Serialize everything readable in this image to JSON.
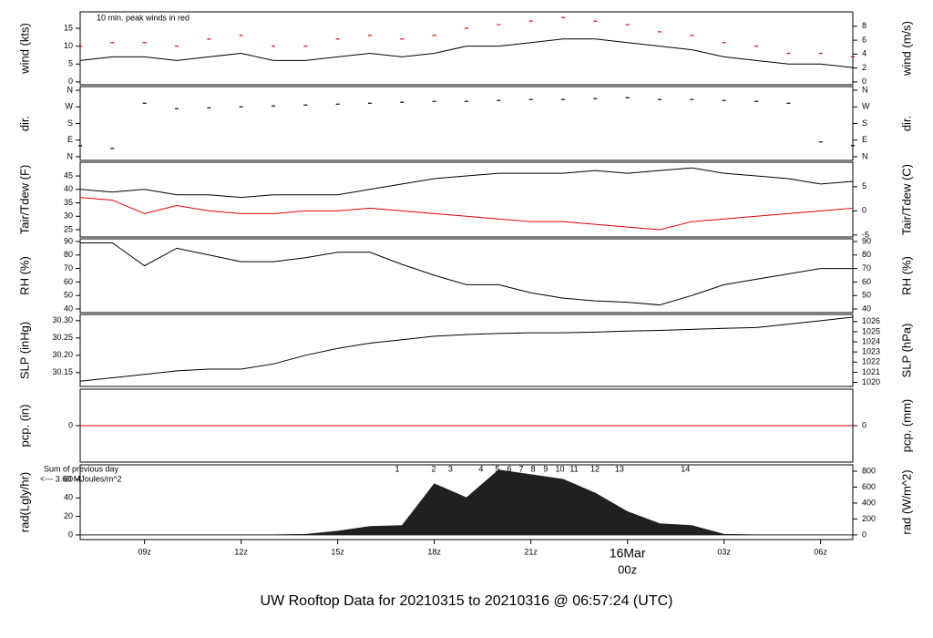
{
  "title": "UW Rooftop Data for 20210315  to  20210316 @ 06:57:24  (UTC)",
  "title_color": "#1010e0",
  "chart_data": [
    {
      "type": "line",
      "ylabel": "wind (kts)",
      "y2label": "wind (m/s)",
      "note": "10 min. peak winds in red",
      "note_color": "#e00000",
      "x": [
        7,
        8,
        9,
        10,
        11,
        12,
        13,
        14,
        15,
        16,
        17,
        18,
        19,
        20,
        21,
        22,
        23,
        24,
        25,
        26,
        27,
        28,
        29,
        30,
        31
      ],
      "xlim": [
        7,
        31
      ],
      "ylim": [
        -0.8,
        19.6
      ],
      "yticks": [
        0,
        5,
        10,
        15
      ],
      "y2lim": [
        -0.41,
        10.08
      ],
      "y2ticks": [
        0,
        2,
        4,
        6,
        8
      ],
      "series": [
        {
          "color": "#000000",
          "mode": "line",
          "values": [
            6,
            7,
            7,
            6,
            7,
            8,
            6,
            6,
            7,
            8,
            7,
            8,
            10,
            10,
            11,
            12,
            12,
            11,
            10,
            9,
            7,
            6,
            5,
            5,
            4
          ]
        },
        {
          "color": "#e00000",
          "mode": "dash",
          "values": [
            10,
            11,
            11,
            10,
            12,
            13,
            10,
            10,
            12,
            13,
            12,
            13,
            15,
            16,
            17,
            18,
            17,
            16,
            14,
            13,
            11,
            10,
            8,
            8,
            7
          ]
        }
      ]
    },
    {
      "type": "line",
      "ylabel": "dir.",
      "y2label": "dir.",
      "x": [
        7,
        8,
        9,
        10,
        11,
        12,
        13,
        14,
        15,
        16,
        17,
        18,
        19,
        20,
        21,
        22,
        23,
        24,
        25,
        26,
        27,
        28,
        29,
        30,
        31
      ],
      "xlim": [
        7,
        31
      ],
      "ylim": [
        -20,
        380
      ],
      "yticks": [
        {
          "value": 0,
          "label": "N"
        },
        {
          "value": 90,
          "label": "E"
        },
        {
          "value": 180,
          "label": "S"
        },
        {
          "value": 270,
          "label": "W"
        },
        {
          "value": 360,
          "label": "N"
        }
      ],
      "y2lim": [
        -20,
        380
      ],
      "y2ticks": [
        {
          "value": 0,
          "label": "N"
        },
        {
          "value": 90,
          "label": "E"
        },
        {
          "value": 180,
          "label": "S"
        },
        {
          "value": 270,
          "label": "W"
        },
        {
          "value": 360,
          "label": "N"
        }
      ],
      "series": [
        {
          "color": "#000000",
          "mode": "dash",
          "values": [
            60,
            45,
            290,
            260,
            265,
            270,
            275,
            280,
            285,
            290,
            295,
            300,
            300,
            305,
            310,
            310,
            315,
            320,
            310,
            310,
            305,
            300,
            290,
            80,
            60
          ]
        }
      ]
    },
    {
      "type": "line",
      "ylabel": "Tair/Tdew (F)",
      "y2label": "Tair/Tdew (C)",
      "x": [
        7,
        8,
        9,
        10,
        11,
        12,
        13,
        14,
        15,
        16,
        17,
        18,
        19,
        20,
        21,
        22,
        23,
        24,
        25,
        26,
        27,
        28,
        29,
        30,
        31
      ],
      "xlim": [
        7,
        31
      ],
      "ylim": [
        22.3,
        50.1
      ],
      "yticks": [
        25,
        30,
        35,
        40,
        45
      ],
      "y2lim": [
        -5.4,
        10.06
      ],
      "y2ticks": [
        -5,
        0,
        5
      ],
      "series": [
        {
          "color": "#000000",
          "mode": "line",
          "values": [
            40,
            39,
            40,
            38,
            38,
            37,
            38,
            38,
            38,
            40,
            42,
            44,
            45,
            46,
            46,
            46,
            47,
            46,
            47,
            48,
            46,
            45,
            44,
            42,
            43
          ]
        },
        {
          "color": "#e00000",
          "mode": "line",
          "values": [
            37,
            36,
            31,
            34,
            32,
            31,
            31,
            32,
            32,
            33,
            32,
            31,
            30,
            29,
            28,
            28,
            27,
            26,
            25,
            28,
            29,
            30,
            31,
            32,
            33
          ]
        }
      ]
    },
    {
      "type": "line",
      "ylabel": "RH (%)",
      "y2label": "RH (%)",
      "x": [
        7,
        8,
        9,
        10,
        11,
        12,
        13,
        14,
        15,
        16,
        17,
        18,
        19,
        20,
        21,
        22,
        23,
        24,
        25,
        26,
        27,
        28,
        29,
        30,
        31
      ],
      "xlim": [
        7,
        31
      ],
      "ylim": [
        37.3,
        92
      ],
      "yticks": [
        40,
        50,
        60,
        70,
        80,
        90
      ],
      "y2lim": [
        37.3,
        92
      ],
      "y2ticks": [
        40,
        50,
        60,
        70,
        80,
        90
      ],
      "series": [
        {
          "color": "#000000",
          "mode": "line",
          "values": [
            89,
            89,
            72,
            85,
            80,
            75,
            75,
            78,
            82,
            82,
            73,
            65,
            58,
            58,
            52,
            48,
            46,
            45,
            43,
            50,
            58,
            62,
            66,
            70,
            70
          ]
        }
      ]
    },
    {
      "type": "line",
      "ylabel": "SLP (inHg)",
      "y2label": "SLP (hPa)",
      "x": [
        7,
        8,
        9,
        10,
        11,
        12,
        13,
        14,
        15,
        16,
        17,
        18,
        19,
        20,
        21,
        22,
        23,
        24,
        25,
        26,
        27,
        28,
        29,
        30,
        31
      ],
      "xlim": [
        7,
        31
      ],
      "ylim": [
        30.11,
        30.318
      ],
      "yticks": [
        {
          "value": 30.15,
          "label": "30.15"
        },
        {
          "value": 30.2,
          "label": "30.20"
        },
        30.25,
        {
          "value": 30.3,
          "label": "30.30"
        }
      ],
      "y2lim": [
        1019.6,
        1026.7
      ],
      "y2ticks": [
        1020,
        1021,
        1022,
        1023,
        1024,
        1025,
        1026
      ],
      "series": [
        {
          "color": "#000000",
          "mode": "line",
          "values": [
            30.125,
            30.135,
            30.145,
            30.155,
            30.16,
            30.16,
            30.175,
            30.2,
            30.22,
            30.235,
            30.245,
            30.255,
            30.26,
            30.263,
            30.265,
            30.265,
            30.267,
            30.27,
            30.272,
            30.275,
            30.278,
            30.28,
            30.29,
            30.3,
            30.31
          ]
        }
      ]
    },
    {
      "type": "line",
      "ylabel": "pcp. (in)",
      "y2label": "pcp. (mm)",
      "x": [
        7,
        8,
        9,
        10,
        11,
        12,
        13,
        14,
        15,
        16,
        17,
        18,
        19,
        20,
        21,
        22,
        23,
        24,
        25,
        26,
        27,
        28,
        29,
        30,
        31
      ],
      "xlim": [
        7,
        31
      ],
      "ylim": [
        -1,
        1
      ],
      "yticks": [
        0
      ],
      "y2lim": [
        -1,
        1
      ],
      "y2ticks": [
        0
      ],
      "series": [
        {
          "color": "#e00000",
          "mode": "line",
          "values": [
            0,
            0,
            0,
            0,
            0,
            0,
            0,
            0,
            0,
            0,
            0,
            0,
            0,
            0,
            0,
            0,
            0,
            0,
            0,
            0,
            0,
            0,
            0,
            0,
            0
          ]
        }
      ]
    },
    {
      "type": "area",
      "ylabel": "rad(Lgly/hr)",
      "y2label": "rad (W/m^2)",
      "x": [
        7,
        8,
        9,
        10,
        11,
        12,
        13,
        14,
        15,
        16,
        17,
        18,
        19,
        20,
        21,
        22,
        23,
        24,
        25,
        26,
        27,
        28,
        29,
        30,
        31
      ],
      "xlim": [
        7,
        31
      ],
      "xticks": [
        {
          "value": 9,
          "label": "09z"
        },
        {
          "value": 12,
          "label": "12z"
        },
        {
          "value": 15,
          "label": "15z"
        },
        {
          "value": 18,
          "label": "18z"
        },
        {
          "value": 21,
          "label": "21z"
        },
        {
          "value": 24,
          "label": "00z"
        },
        {
          "value": 27,
          "label": "03z"
        },
        {
          "value": 30,
          "label": "06z"
        }
      ],
      "date_label": {
        "text": "16Mar",
        "x": 24,
        "color": "#e00000"
      },
      "ylim": [
        -5,
        75.7
      ],
      "yticks": [
        0,
        20,
        40,
        60
      ],
      "y2lim": [
        -58,
        880
      ],
      "y2ticks": [
        0,
        200,
        400,
        600,
        800
      ],
      "annotations": [
        "Sum of previous day",
        "<--- 3.60 MJoules/m^2"
      ],
      "annotation_color": "#a020f0",
      "markers": {
        "x": [
          16.85,
          17.98,
          18.5,
          19.45,
          19.96,
          20.33,
          20.7,
          21.07,
          21.46,
          21.9,
          22.34,
          22.99,
          23.75,
          25.8
        ],
        "labels": [
          "1",
          "2",
          "3",
          "4",
          "5",
          "6",
          "7",
          "8",
          "9",
          "10",
          "11",
          "12",
          "13",
          "14"
        ]
      },
      "series": [
        {
          "color": "#202020",
          "mode": "area",
          "values": [
            0,
            0,
            0,
            0,
            0,
            0,
            0,
            0.5,
            4,
            9,
            10,
            55,
            40,
            70,
            65,
            60,
            45,
            25,
            12,
            10,
            0.5,
            0,
            0,
            0,
            0
          ]
        }
      ]
    }
  ]
}
